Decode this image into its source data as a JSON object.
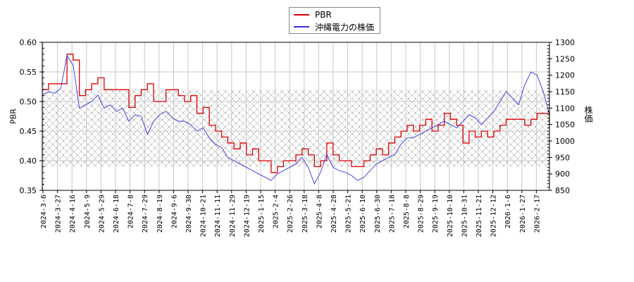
{
  "legend": {
    "items": [
      {
        "label": "PBR",
        "color": "#dd0000"
      },
      {
        "label": "沖縄電力の株価",
        "color": "#3333dd"
      }
    ]
  },
  "axes": {
    "left_label": "PBR",
    "right_label": "株価"
  },
  "chart_data": {
    "type": "line",
    "title": "",
    "xlabel": "",
    "ylabel": "PBR",
    "y2label": "株価",
    "ylim": [
      0.35,
      0.6
    ],
    "y2lim": [
      850,
      1300
    ],
    "yticks": [
      "0.35",
      "0.40",
      "0.45",
      "0.50",
      "0.55",
      "0.60"
    ],
    "y2ticks": [
      "850",
      "900",
      "950",
      "1000",
      "1050",
      "1100",
      "1150",
      "1200",
      "1250",
      "1300"
    ],
    "grid": true,
    "legend_position": "top-center",
    "shaded_band": {
      "pbr_from": 0.39,
      "pbr_to": 0.52,
      "style": "crosshatch"
    },
    "x_tick_labels": [
      "2024-3-6",
      "2024-3-27",
      "2024-4-16",
      "2024-5-9",
      "2024-5-29",
      "2024-6-18",
      "2024-7-8",
      "2024-7-29",
      "2024-8-19",
      "2024-9-6",
      "2024-9-30",
      "2024-10-21",
      "2024-11-11",
      "2024-11-29",
      "2024-12-19",
      "2025-1-15",
      "2025-2-4",
      "2025-2-26",
      "2025-3-18",
      "2025-4-8",
      "2025-4-28",
      "2025-5-21",
      "2025-6-10",
      "2025-6-30",
      "2025-7-18",
      "2025-8-8",
      "2025-8-29",
      "2025-9-19",
      "2025-10-10",
      "2025-10-31",
      "2025-11-21",
      "2025-12-12",
      "2026-1-6",
      "2026-1-27",
      "2026-2-17"
    ],
    "series": [
      {
        "name": "PBR",
        "axis": "left",
        "color": "#dd0000",
        "values": [
          0.52,
          0.53,
          0.53,
          0.53,
          0.58,
          0.57,
          0.51,
          0.52,
          0.53,
          0.54,
          0.52,
          0.52,
          0.52,
          0.52,
          0.49,
          0.51,
          0.52,
          0.53,
          0.5,
          0.5,
          0.52,
          0.52,
          0.51,
          0.5,
          0.51,
          0.48,
          0.49,
          0.46,
          0.45,
          0.44,
          0.43,
          0.42,
          0.43,
          0.41,
          0.42,
          0.4,
          0.4,
          0.38,
          0.39,
          0.4,
          0.4,
          0.41,
          0.42,
          0.41,
          0.39,
          0.4,
          0.43,
          0.41,
          0.4,
          0.4,
          0.39,
          0.39,
          0.4,
          0.41,
          0.42,
          0.41,
          0.43,
          0.44,
          0.45,
          0.46,
          0.45,
          0.46,
          0.47,
          0.45,
          0.46,
          0.48,
          0.47,
          0.46,
          0.43,
          0.45,
          0.44,
          0.45,
          0.44,
          0.45,
          0.46,
          0.47,
          0.47,
          0.47,
          0.46,
          0.47,
          0.48,
          0.48,
          0.46
        ]
      },
      {
        "name": "沖縄電力の株価",
        "axis": "right",
        "color": "#3333dd",
        "values": [
          1140,
          1150,
          1145,
          1160,
          1260,
          1230,
          1100,
          1110,
          1120,
          1140,
          1100,
          1110,
          1090,
          1100,
          1060,
          1080,
          1075,
          1020,
          1060,
          1080,
          1090,
          1070,
          1060,
          1060,
          1050,
          1030,
          1040,
          1010,
          990,
          980,
          950,
          940,
          930,
          920,
          910,
          900,
          890,
          880,
          900,
          910,
          920,
          930,
          950,
          920,
          870,
          905,
          960,
          920,
          910,
          905,
          895,
          880,
          890,
          910,
          930,
          940,
          950,
          960,
          990,
          1010,
          1010,
          1020,
          1030,
          1040,
          1050,
          1060,
          1050,
          1040,
          1060,
          1080,
          1070,
          1050,
          1070,
          1090,
          1120,
          1150,
          1130,
          1110,
          1170,
          1210,
          1200,
          1150,
          1080
        ]
      }
    ]
  }
}
